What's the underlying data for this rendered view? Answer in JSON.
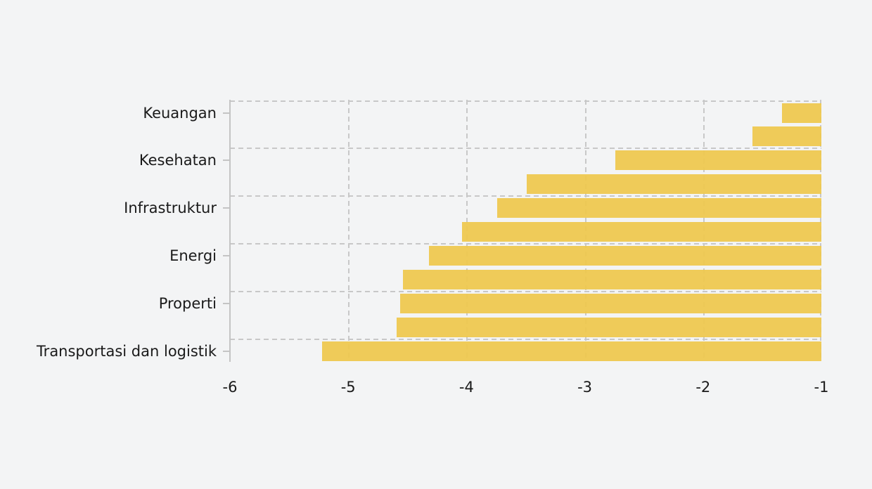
{
  "chart": {
    "background_color": "#f3f4f5",
    "bar_color": "#eec84f",
    "grid_color": "#c8c8c8",
    "axis_color": "#c4c4c4",
    "text_color": "#1a1a1a"
  },
  "chart_data": {
    "type": "bar",
    "orientation": "horizontal",
    "title": "",
    "xlim": [
      -6,
      -1
    ],
    "bar_base": -1,
    "grid": "dashed",
    "legend": "none",
    "x_ticks": [
      -6,
      -5,
      -4,
      -3,
      -2,
      -1
    ],
    "x_tick_labels": [
      "-6",
      "-5",
      "-4",
      "-3",
      "-2",
      "-1"
    ],
    "y_axis_labels": [
      "Keuangan",
      "Kesehatan",
      "Infrastruktur",
      "Energi",
      "Properti",
      "Transportasi dan logistik"
    ],
    "bars": [
      {
        "label": "Keuangan",
        "value": -1.33
      },
      {
        "label": "",
        "value": -1.58
      },
      {
        "label": "Kesehatan",
        "value": -2.74
      },
      {
        "label": "",
        "value": -3.49
      },
      {
        "label": "Infrastruktur",
        "value": -3.74
      },
      {
        "label": "",
        "value": -4.04
      },
      {
        "label": "Energi",
        "value": -4.32
      },
      {
        "label": "",
        "value": -4.54
      },
      {
        "label": "Properti",
        "value": -4.56
      },
      {
        "label": "",
        "value": -4.59
      },
      {
        "label": "Transportasi dan logistik",
        "value": -5.22
      }
    ]
  }
}
